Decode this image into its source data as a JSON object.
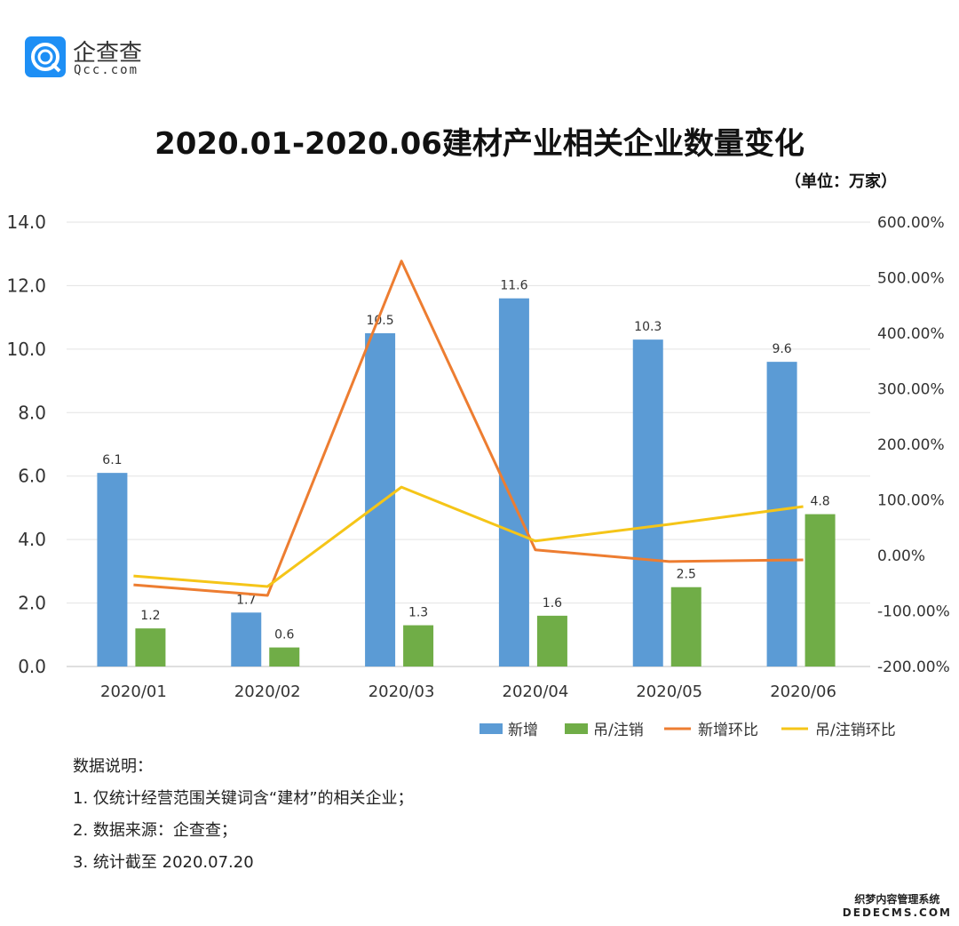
{
  "logo": {
    "cn": "企查查",
    "en": "Qcc.com",
    "color": "#1e8ff5"
  },
  "watermark": {
    "line1": "织梦内容管理系统",
    "line2": "DEDECMS.COM"
  },
  "chart_data": {
    "type": "bar+line",
    "title": "2020.01-2020.06建材产业相关企业数量变化",
    "unit": "（单位：万家）",
    "categories": [
      "2020/01",
      "2020/02",
      "2020/03",
      "2020/04",
      "2020/05",
      "2020/06"
    ],
    "left_axis": {
      "ylim": [
        0,
        14
      ],
      "ticks": [
        "0.0",
        "2.0",
        "4.0",
        "6.0",
        "8.0",
        "10.0",
        "12.0",
        "14.0"
      ]
    },
    "right_axis": {
      "ylim": [
        -200,
        600
      ],
      "ticks": [
        "-200.00%",
        "-100.00%",
        "0.00%",
        "100.00%",
        "200.00%",
        "300.00%",
        "400.00%",
        "500.00%",
        "600.00%"
      ]
    },
    "grid": true,
    "legend_position": "bottom-right",
    "series": [
      {
        "name": "新增",
        "type": "bar",
        "axis": "left",
        "color": "#5b9bd5",
        "values": [
          6.1,
          1.7,
          10.5,
          11.6,
          10.3,
          9.6
        ],
        "labels": [
          "6.1",
          "1.7",
          "10.5",
          "11.6",
          "10.3",
          "9.6"
        ]
      },
      {
        "name": "吊/注销",
        "type": "bar",
        "axis": "left",
        "color": "#70ad47",
        "values": [
          1.2,
          0.6,
          1.3,
          1.6,
          2.5,
          4.8
        ],
        "labels": [
          "1.2",
          "0.6",
          "1.3",
          "1.6",
          "2.5",
          "4.8"
        ]
      },
      {
        "name": "新增环比",
        "type": "line",
        "axis": "right",
        "color": "#ed7d31",
        "values": [
          -53,
          -72,
          530,
          10,
          -11,
          -8
        ]
      },
      {
        "name": "吊/注销环比",
        "type": "line",
        "axis": "right",
        "color": "#f5c518",
        "values": [
          -37,
          -56,
          123,
          26,
          56,
          88
        ]
      }
    ]
  },
  "notes": {
    "heading": "数据说明：",
    "items": [
      "1. 仅统计经营范围关键词含“建材”的相关企业；",
      "2. 数据来源：企查查；",
      "3. 统计截至 2020.07.20"
    ]
  }
}
